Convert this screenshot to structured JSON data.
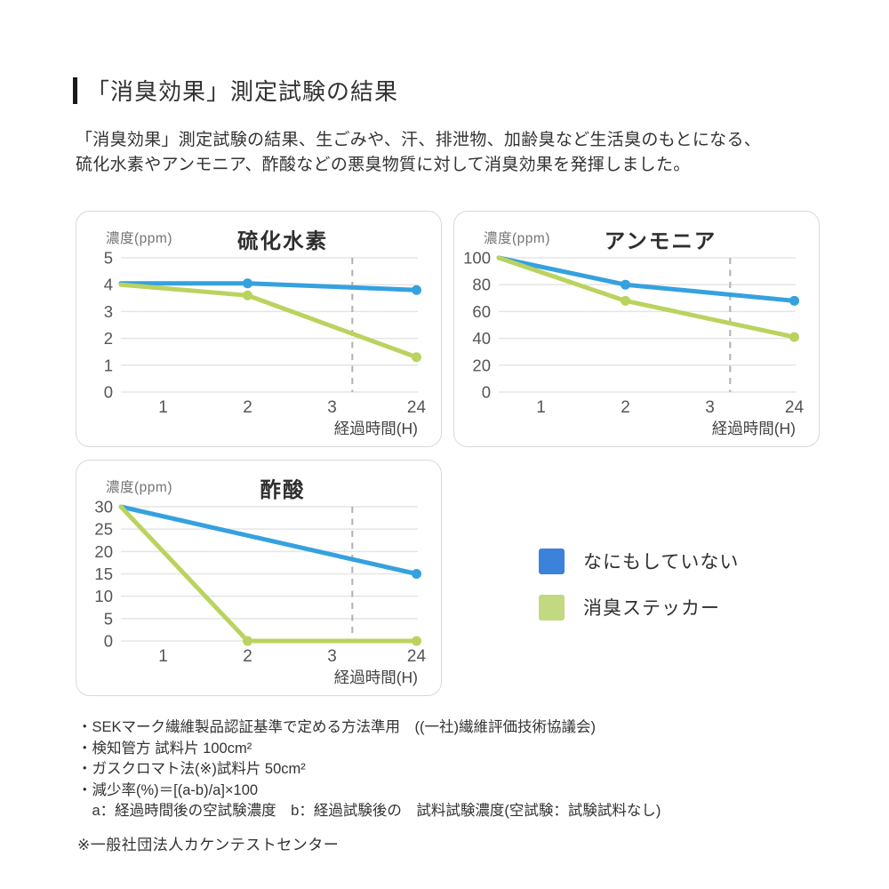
{
  "page": {
    "title": "「消臭効果」測定試験の結果",
    "intro_lines": [
      "「消臭効果」測定試験の結果、生ごみや、汗、排泄物、加齢臭など生活臭のもとになる、",
      "硫化水素やアンモニア、酢酸などの悪臭物質に対して消臭効果を発揮しました。"
    ]
  },
  "colors": {
    "line_blue": "#35a1df",
    "line_green": "#bad35f",
    "legend_blue": "#3c82da",
    "legend_green": "#c1d980",
    "grid": "#e5e5e5",
    "dashed_break": "#b0b0b0",
    "panel_border": "#d9d9d9",
    "title_text": "#2e2e2e",
    "tick_text": "#555555",
    "axis_unit_text": "#757575",
    "x_axis_label_text": "#444444"
  },
  "legend": {
    "items": [
      {
        "label": "なにもしていない",
        "color_key": "legend_blue"
      },
      {
        "label": "消臭ステッカー",
        "color_key": "legend_green"
      }
    ]
  },
  "chart_data": {
    "type": "line",
    "x_ticks": [
      "1",
      "2",
      "3",
      "24"
    ],
    "x_label": "経過時間(H)",
    "y_unit_label": "濃度(ppm)",
    "grid": "horizontal-only",
    "axis_break_dashed_line": true,
    "dashed_line_slot": 3.24,
    "slot_note": "x_slot 0 = left edge of plot (test start); slots 1-4 = x_ticks 1,2,3,24 hours",
    "charts": [
      {
        "title": "硫化水素",
        "ylim": [
          0,
          5
        ],
        "y_ticks": [
          5,
          4,
          3,
          2,
          1,
          0
        ],
        "series": [
          {
            "name": "なにもしていない",
            "color_key": "line_blue",
            "points": [
              {
                "x_slot": 0,
                "y": 4.05,
                "dot": false
              },
              {
                "x_slot": 2,
                "y": 4.05,
                "dot": true
              },
              {
                "x_slot": 4,
                "y": 3.8,
                "dot": true
              }
            ]
          },
          {
            "name": "消臭ステッカー",
            "color_key": "line_green",
            "points": [
              {
                "x_slot": 0,
                "y": 4.0,
                "dot": false
              },
              {
                "x_slot": 2,
                "y": 3.6,
                "dot": true
              },
              {
                "x_slot": 4,
                "y": 1.3,
                "dot": true
              }
            ]
          }
        ]
      },
      {
        "title": "アンモニア",
        "ylim": [
          0,
          100
        ],
        "y_ticks": [
          100,
          80,
          60,
          40,
          20,
          0
        ],
        "series": [
          {
            "name": "なにもしていない",
            "color_key": "line_blue",
            "points": [
              {
                "x_slot": 0,
                "y": 100,
                "dot": false
              },
              {
                "x_slot": 2,
                "y": 80,
                "dot": true
              },
              {
                "x_slot": 4,
                "y": 68,
                "dot": true
              }
            ]
          },
          {
            "name": "消臭ステッカー",
            "color_key": "line_green",
            "points": [
              {
                "x_slot": 0,
                "y": 100,
                "dot": false
              },
              {
                "x_slot": 2,
                "y": 68,
                "dot": true
              },
              {
                "x_slot": 4,
                "y": 41,
                "dot": true
              }
            ]
          }
        ]
      },
      {
        "title": "酢酸",
        "ylim": [
          0,
          30
        ],
        "y_ticks": [
          30,
          25,
          20,
          15,
          10,
          5,
          0
        ],
        "series": [
          {
            "name": "なにもしていない",
            "color_key": "line_blue",
            "points": [
              {
                "x_slot": 0,
                "y": 30,
                "dot": false
              },
              {
                "x_slot": 4,
                "y": 15,
                "dot": true
              }
            ]
          },
          {
            "name": "消臭ステッカー",
            "color_key": "line_green",
            "points": [
              {
                "x_slot": 0,
                "y": 30,
                "dot": false
              },
              {
                "x_slot": 2,
                "y": 0,
                "dot": true
              },
              {
                "x_slot": 4,
                "y": 0,
                "dot": true
              }
            ]
          }
        ]
      }
    ]
  },
  "footnotes": {
    "lines": [
      "・SEKマーク繊維製品認証基準で定める方法準用　((一社)繊維評価技術協議会)",
      "・検知管方 試料片 100cm²",
      "・ガスクロマト法(※)試料片 50cm²",
      "・減少率(%)＝[(a-b)/a]×100",
      "　a：経過時間後の空試験濃度　b：経過試験後の　試料試験濃度(空試験：試験試料なし)"
    ],
    "note": "※一般社団法人カケンテストセンター"
  }
}
